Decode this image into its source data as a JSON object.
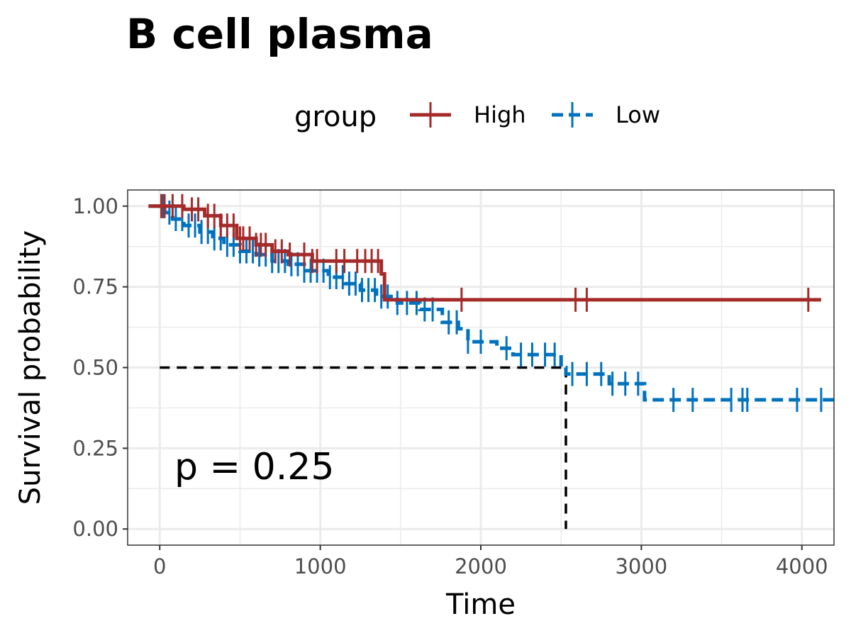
{
  "chart_data": {
    "type": "line",
    "title": "B cell plasma",
    "xlabel": "Time",
    "ylabel": "Survival probability",
    "xlim": [
      -200,
      4200
    ],
    "ylim": [
      -0.05,
      1.05
    ],
    "x_ticks": [
      "0",
      "1000",
      "2000",
      "3000",
      "4000"
    ],
    "x_tick_values": [
      0,
      1000,
      2000,
      3000,
      4000
    ],
    "y_ticks": [
      "0.00",
      "0.25",
      "0.50",
      "0.75",
      "1.00"
    ],
    "y_tick_values": [
      0,
      0.25,
      0.5,
      0.75,
      1.0
    ],
    "grid": true,
    "legend": {
      "title": "group",
      "placement": "top"
    },
    "annotation": "p = 0.25",
    "median_survival": {
      "x": 2530,
      "y": 0.5
    },
    "series": [
      {
        "name": "High",
        "color": "#a52a2a",
        "linestyle": "solid",
        "steps": [
          [
            -70,
            1.0
          ],
          [
            150,
            1.0
          ],
          [
            150,
            0.99
          ],
          [
            280,
            0.99
          ],
          [
            280,
            0.97
          ],
          [
            380,
            0.97
          ],
          [
            380,
            0.94
          ],
          [
            480,
            0.94
          ],
          [
            480,
            0.9
          ],
          [
            600,
            0.9
          ],
          [
            600,
            0.88
          ],
          [
            700,
            0.88
          ],
          [
            700,
            0.86
          ],
          [
            800,
            0.86
          ],
          [
            800,
            0.85
          ],
          [
            950,
            0.85
          ],
          [
            950,
            0.83
          ],
          [
            1380,
            0.83
          ],
          [
            1380,
            0.79
          ],
          [
            1400,
            0.79
          ],
          [
            1400,
            0.71
          ],
          [
            4120,
            0.71
          ]
        ],
        "censor_x": [
          10,
          30,
          80,
          140,
          200,
          240,
          300,
          340,
          380,
          420,
          460,
          500,
          520,
          560,
          600,
          630,
          660,
          720,
          760,
          810,
          900,
          950,
          980,
          1100,
          1150,
          1230,
          1280,
          1320,
          1360,
          1880,
          2590,
          2660,
          4040
        ]
      },
      {
        "name": "Low",
        "color": "#0072bd",
        "linestyle": "dashed",
        "steps": [
          [
            -70,
            1.0
          ],
          [
            30,
            1.0
          ],
          [
            30,
            0.98
          ],
          [
            80,
            0.98
          ],
          [
            80,
            0.96
          ],
          [
            150,
            0.96
          ],
          [
            150,
            0.94
          ],
          [
            250,
            0.94
          ],
          [
            250,
            0.92
          ],
          [
            330,
            0.92
          ],
          [
            330,
            0.9
          ],
          [
            400,
            0.9
          ],
          [
            400,
            0.88
          ],
          [
            500,
            0.88
          ],
          [
            500,
            0.86
          ],
          [
            600,
            0.86
          ],
          [
            600,
            0.85
          ],
          [
            700,
            0.85
          ],
          [
            700,
            0.83
          ],
          [
            800,
            0.83
          ],
          [
            800,
            0.82
          ],
          [
            900,
            0.82
          ],
          [
            900,
            0.8
          ],
          [
            1050,
            0.8
          ],
          [
            1050,
            0.78
          ],
          [
            1150,
            0.78
          ],
          [
            1150,
            0.76
          ],
          [
            1250,
            0.76
          ],
          [
            1250,
            0.74
          ],
          [
            1350,
            0.74
          ],
          [
            1350,
            0.72
          ],
          [
            1480,
            0.72
          ],
          [
            1480,
            0.7
          ],
          [
            1620,
            0.7
          ],
          [
            1620,
            0.68
          ],
          [
            1760,
            0.68
          ],
          [
            1760,
            0.64
          ],
          [
            1860,
            0.64
          ],
          [
            1860,
            0.62
          ],
          [
            1920,
            0.62
          ],
          [
            1920,
            0.58
          ],
          [
            2100,
            0.58
          ],
          [
            2100,
            0.56
          ],
          [
            2200,
            0.56
          ],
          [
            2200,
            0.54
          ],
          [
            2500,
            0.54
          ],
          [
            2500,
            0.5
          ],
          [
            2530,
            0.5
          ],
          [
            2530,
            0.48
          ],
          [
            2800,
            0.48
          ],
          [
            2800,
            0.45
          ],
          [
            3020,
            0.45
          ],
          [
            3020,
            0.4
          ],
          [
            4200,
            0.4
          ]
        ],
        "censor_x": [
          20,
          60,
          100,
          140,
          180,
          220,
          260,
          300,
          340,
          380,
          420,
          460,
          500,
          540,
          580,
          620,
          660,
          700,
          740,
          780,
          820,
          860,
          900,
          940,
          980,
          1020,
          1060,
          1100,
          1140,
          1180,
          1220,
          1260,
          1300,
          1340,
          1380,
          1420,
          1480,
          1540,
          1600,
          1650,
          1700,
          1800,
          1850,
          1920,
          2000,
          2160,
          2250,
          2320,
          2400,
          2460,
          2570,
          2660,
          2750,
          2820,
          2900,
          2980,
          3200,
          3320,
          3560,
          3630,
          3660,
          3970,
          4120
        ]
      }
    ]
  }
}
